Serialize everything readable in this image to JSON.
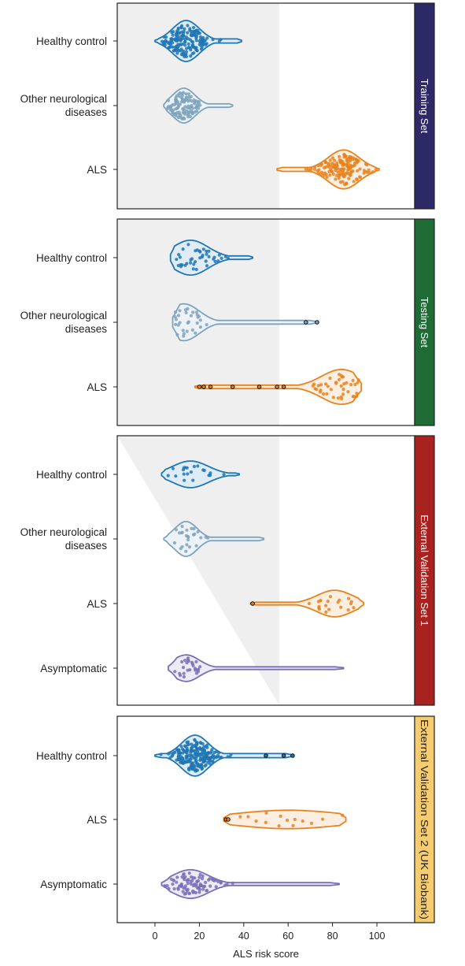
{
  "chart_data": {
    "type": "violin",
    "xlabel": "ALS risk score",
    "xlim": [
      -17,
      117
    ],
    "x_ticks": [
      0,
      20,
      40,
      60,
      80,
      100
    ],
    "colors": {
      "healthy_control": "#1f77b4",
      "other_neurological": "#7fa3bd",
      "als": "#e8821e",
      "asymptomatic": "#7b6fb8",
      "shade": "#efefef"
    },
    "panels": [
      {
        "strip_label": "Training Set",
        "strip_color": "#2b2a66",
        "strip_text_color": "#ffffff",
        "shade": "rect",
        "shade_limit": 56,
        "groups": [
          {
            "label": "Healthy control",
            "color_key": "healthy_control",
            "min": 0,
            "max": 39,
            "mode": 14,
            "spread": 6,
            "width": 1.0,
            "outliers": [],
            "n": 170
          },
          {
            "label": "Other neurological diseases",
            "color_key": "other_neurological",
            "min": 4,
            "max": 35,
            "mode": 13,
            "spread": 5,
            "width": 0.85,
            "outliers": [],
            "n": 110
          },
          {
            "label": "ALS",
            "color_key": "als",
            "min": 55,
            "max": 101,
            "mode": 85,
            "spread": 7,
            "width": 0.95,
            "outliers": [],
            "n": 150
          }
        ]
      },
      {
        "strip_label": "Testing Set",
        "strip_color": "#1e6b35",
        "strip_text_color": "#ffffff",
        "shade": "rect",
        "shade_limit": 56,
        "groups": [
          {
            "label": "Healthy control",
            "color_key": "healthy_control",
            "min": 7,
            "max": 44,
            "mode": 16,
            "spread": 8,
            "width": 0.85,
            "outliers": [],
            "n": 40
          },
          {
            "label": "Other neurological diseases",
            "color_key": "other_neurological",
            "min": 8,
            "max": 73,
            "mode": 13,
            "spread": 7,
            "width": 0.9,
            "outliers": [
              68,
              73
            ],
            "n": 30
          },
          {
            "label": "ALS",
            "color_key": "als",
            "min": 18,
            "max": 93,
            "mode": 84,
            "spread": 9,
            "width": 0.85,
            "outliers": [
              20,
              22,
              25,
              35,
              47,
              55,
              58
            ],
            "n": 40
          }
        ]
      },
      {
        "strip_label": "External Validation Set 1",
        "strip_color": "#a8231f",
        "strip_text_color": "#ffffff",
        "shade": "triangle",
        "shade_limit": 56,
        "groups": [
          {
            "label": "Healthy control",
            "color_key": "healthy_control",
            "min": 3,
            "max": 38,
            "mode": 16,
            "spread": 8,
            "width": 0.65,
            "outliers": [],
            "n": 20
          },
          {
            "label": "Other neurological diseases",
            "color_key": "other_neurological",
            "min": 4,
            "max": 49,
            "mode": 14,
            "spread": 5,
            "width": 0.85,
            "outliers": [],
            "n": 25
          },
          {
            "label": "ALS",
            "color_key": "als",
            "min": 43,
            "max": 94,
            "mode": 81,
            "spread": 8,
            "width": 0.65,
            "outliers": [
              44
            ],
            "n": 20
          },
          {
            "label": "Asymptomatic",
            "color_key": "asymptomatic",
            "min": 6,
            "max": 85,
            "mode": 14,
            "spread": 6,
            "width": 0.65,
            "outliers": [],
            "n": 25
          }
        ]
      },
      {
        "strip_label": "External Validation Set 2 (UK Biobank)",
        "strip_color": "#f5cc70",
        "strip_text_color": "#222222",
        "shade": "none",
        "shade_limit": 56,
        "groups": [
          {
            "label": "Healthy control",
            "color_key": "healthy_control",
            "min": 0,
            "max": 62,
            "mode": 18,
            "spread": 6,
            "width": 1.0,
            "outliers": [
              50,
              58,
              62
            ],
            "n": 220
          },
          {
            "label": "ALS",
            "color_key": "als",
            "min": 31,
            "max": 86,
            "mode": 60,
            "spread": 25,
            "width": 0.45,
            "outliers": [
              32,
              33
            ],
            "n": 14
          },
          {
            "label": "Asymptomatic",
            "color_key": "asymptomatic",
            "min": 3,
            "max": 83,
            "mode": 16,
            "spread": 8,
            "width": 0.7,
            "outliers": [],
            "n": 90
          }
        ]
      }
    ]
  }
}
